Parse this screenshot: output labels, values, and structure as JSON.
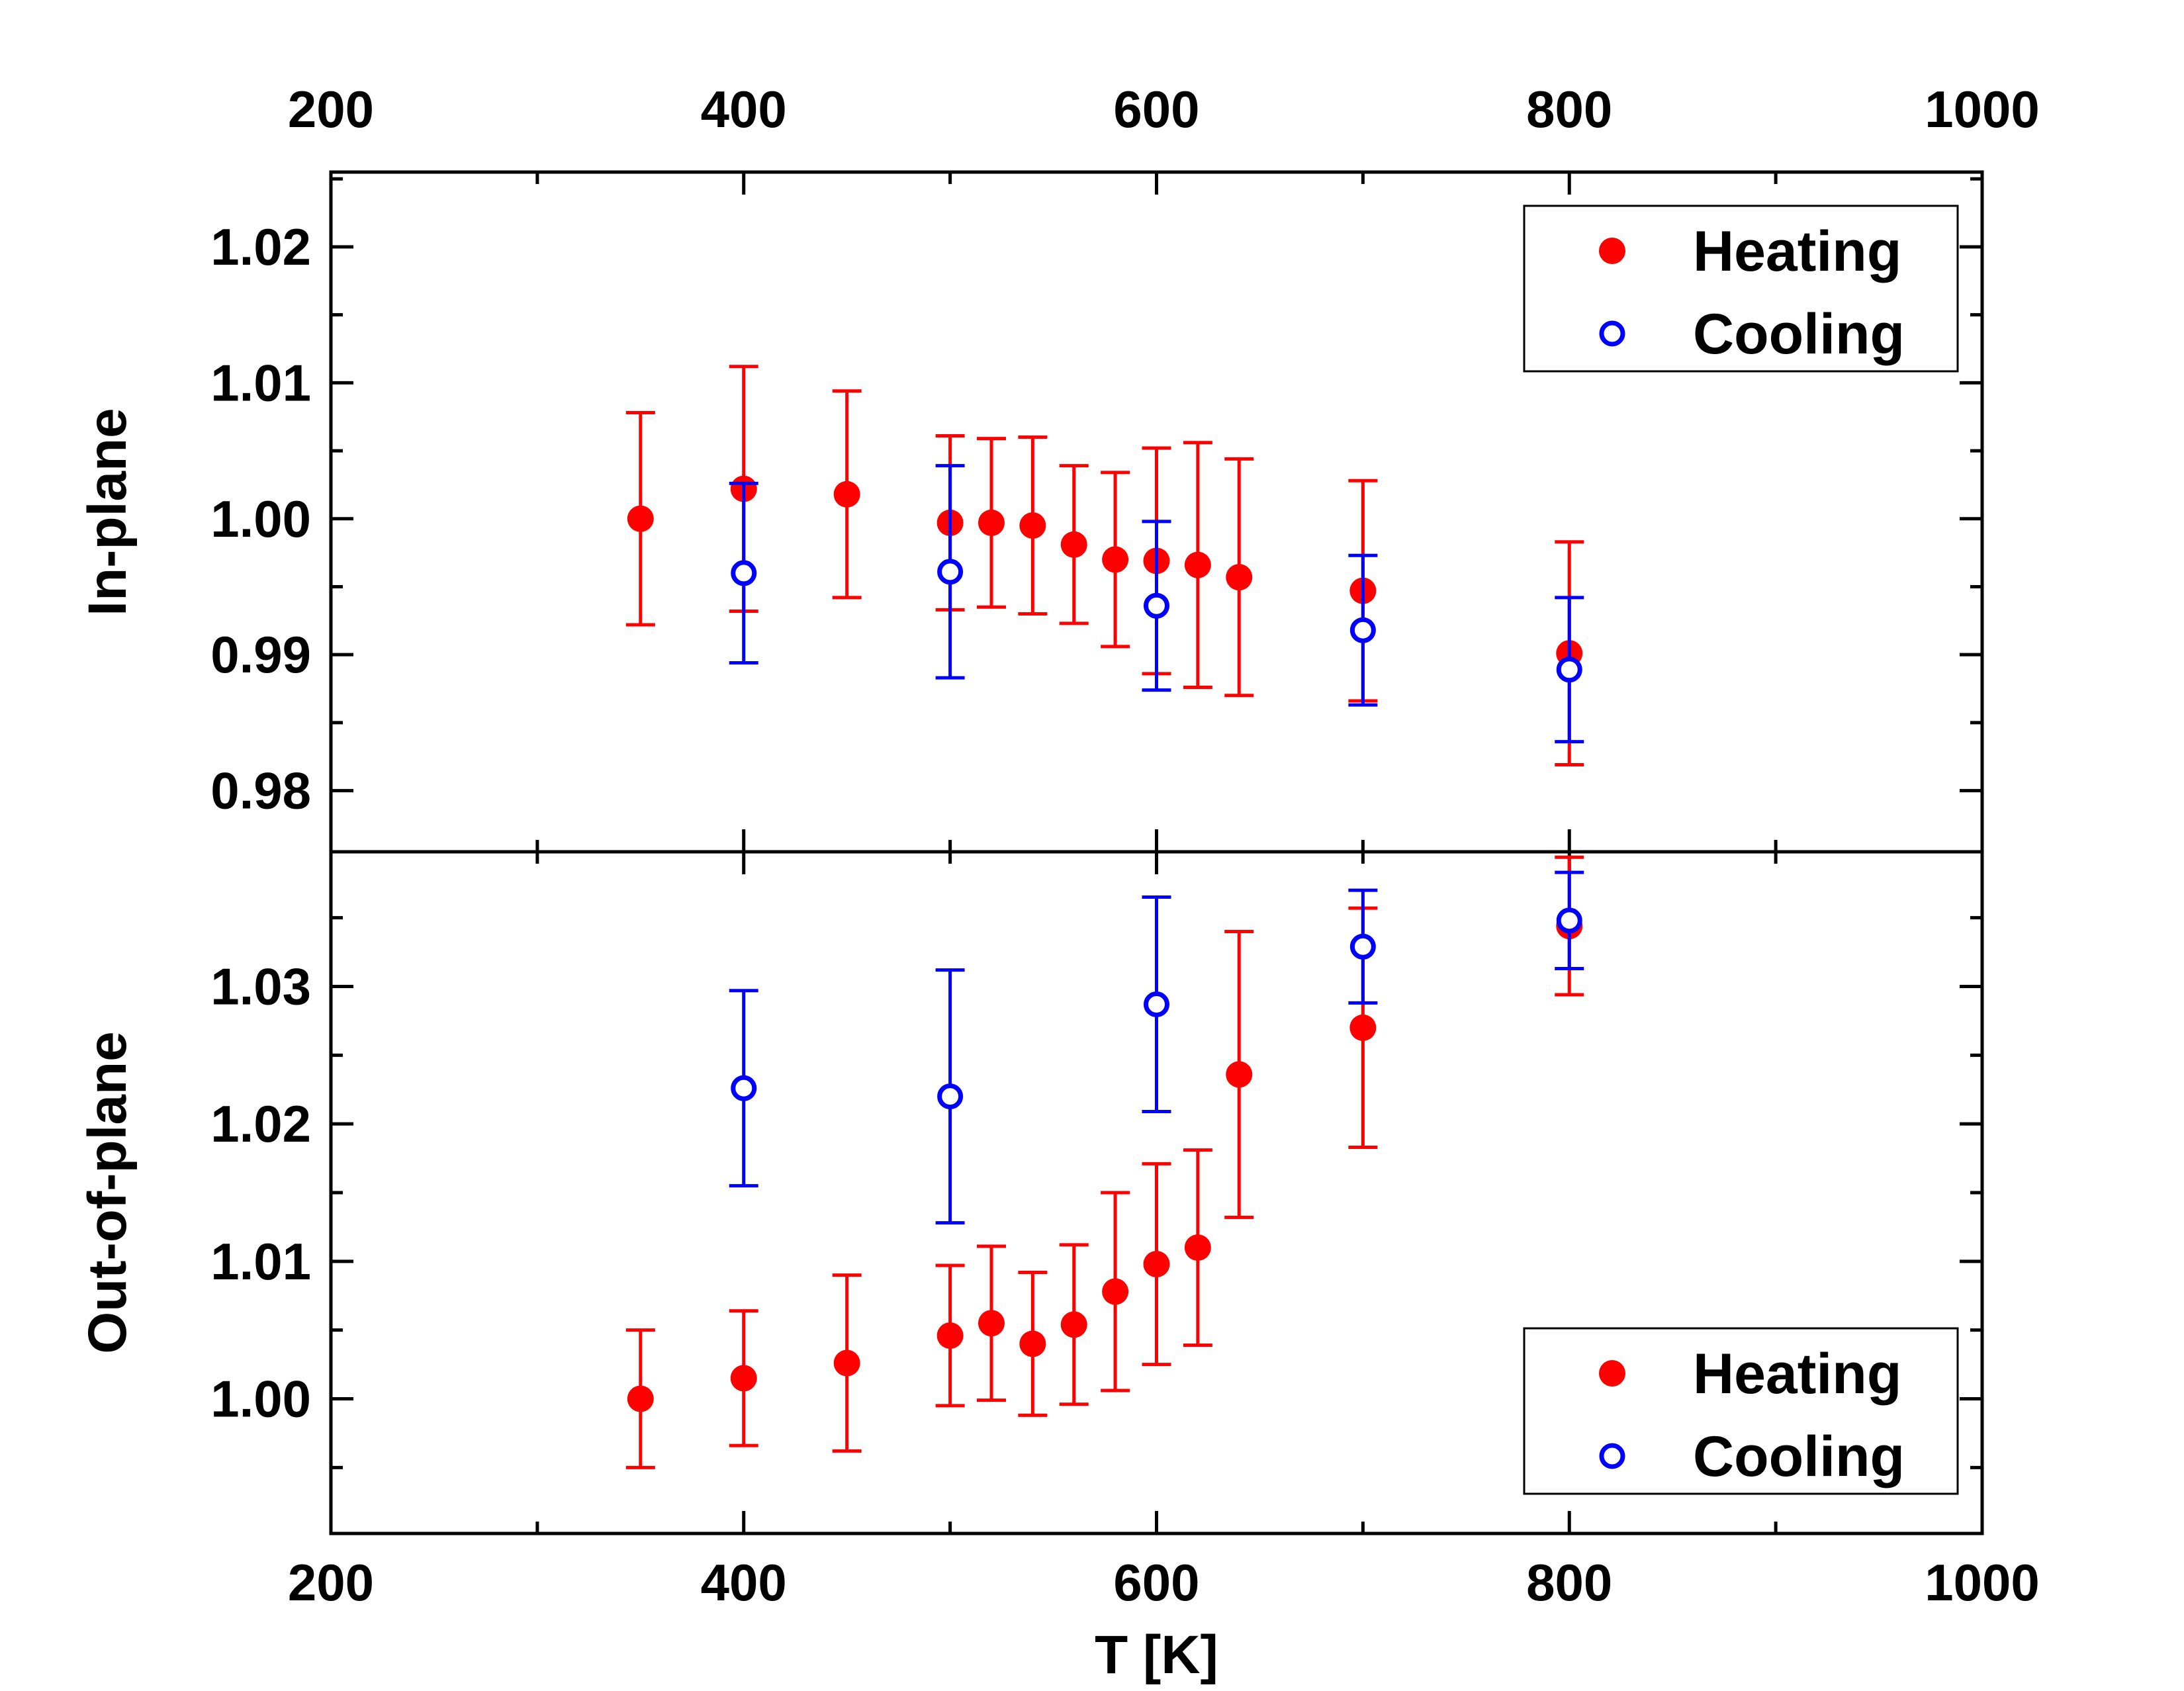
{
  "colors": {
    "heating": "#ff0000",
    "cooling": "#0000ff",
    "axis": "#000000"
  },
  "x_axis": {
    "label": "T [K]",
    "range": [
      200,
      1000
    ],
    "ticks": [
      200,
      400,
      600,
      800,
      1000
    ],
    "tick_labels": [
      "200",
      "400",
      "600",
      "800",
      "1000"
    ],
    "minor_ticks": [
      300,
      500,
      700,
      900
    ]
  },
  "chart_data": [
    {
      "type": "scatter",
      "panel": "top",
      "ylabel": "In-plane",
      "ylim": [
        0.9755,
        1.0255
      ],
      "yticks": [
        0.98,
        0.99,
        1.0,
        1.01,
        1.02
      ],
      "ytick_labels": [
        "0.98",
        "0.99",
        "1.00",
        "1.01",
        "1.02"
      ],
      "yminor_ticks": [
        0.985,
        0.995,
        1.005,
        1.015,
        1.025
      ],
      "legend": {
        "position": "top-right",
        "entries": [
          "Heating",
          "Cooling"
        ]
      },
      "series": [
        {
          "name": "Heating",
          "marker": "filled-circle",
          "x": [
            350,
            400,
            450,
            500,
            520,
            540,
            560,
            580,
            600,
            620,
            640,
            700,
            800
          ],
          "y": [
            1.0,
            1.0022,
            1.0018,
            0.9997,
            0.9997,
            0.9995,
            0.9981,
            0.997,
            0.9969,
            0.9966,
            0.9957,
            0.9947,
            0.9901
          ],
          "err": [
            0.0078,
            0.009,
            0.0076,
            0.0064,
            0.0062,
            0.0065,
            0.0058,
            0.0064,
            0.0083,
            0.009,
            0.0087,
            0.0081,
            0.0082
          ]
        },
        {
          "name": "Cooling",
          "marker": "open-circle",
          "x": [
            400,
            500,
            600,
            700,
            800
          ],
          "y": [
            0.996,
            0.9961,
            0.9936,
            0.9918,
            0.9889
          ],
          "err": [
            0.0066,
            0.0078,
            0.0062,
            0.0055,
            0.0053
          ]
        }
      ]
    },
    {
      "type": "scatter",
      "panel": "bottom",
      "ylabel": "Out-of-plane",
      "ylim": [
        0.9902,
        1.0398
      ],
      "yticks": [
        1.0,
        1.01,
        1.02,
        1.03
      ],
      "ytick_labels": [
        "1.00",
        "1.01",
        "1.02",
        "1.03"
      ],
      "yminor_ticks": [
        0.995,
        1.005,
        1.015,
        1.025,
        1.035
      ],
      "legend": {
        "position": "bottom-right",
        "entries": [
          "Heating",
          "Cooling"
        ]
      },
      "series": [
        {
          "name": "Heating",
          "marker": "filled-circle",
          "x": [
            350,
            400,
            450,
            500,
            520,
            540,
            560,
            580,
            600,
            620,
            640,
            700,
            800
          ],
          "y": [
            1.0,
            1.0015,
            1.0026,
            1.0046,
            1.0055,
            1.004,
            1.0054,
            1.0078,
            1.0098,
            1.011,
            1.0236,
            1.027,
            1.0344
          ],
          "err": [
            0.005,
            0.0049,
            0.0064,
            0.0051,
            0.0056,
            0.0052,
            0.0058,
            0.0072,
            0.0073,
            0.0071,
            0.0104,
            0.0087,
            0.005
          ]
        },
        {
          "name": "Cooling",
          "marker": "open-circle",
          "x": [
            400,
            500,
            600,
            700,
            800
          ],
          "y": [
            1.0226,
            1.022,
            1.0287,
            1.0329,
            1.0348
          ],
          "err": [
            0.0071,
            0.0092,
            0.0078,
            0.0041,
            0.0035
          ]
        }
      ]
    }
  ]
}
